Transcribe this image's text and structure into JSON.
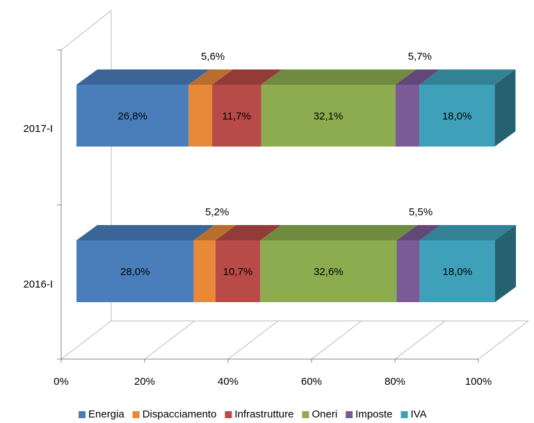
{
  "chart_data": {
    "type": "bar3d_stacked_horizontal",
    "categories": [
      "2017-I",
      "2016-I"
    ],
    "series": [
      {
        "name": "Energia",
        "color": "#4a7ebb",
        "values": [
          26.8,
          28.0
        ],
        "value_labels": [
          "26,8%",
          "28,0%"
        ]
      },
      {
        "name": "Dispacciamento",
        "color": "#e8893a",
        "values": [
          5.6,
          5.2
        ],
        "value_labels": [
          "5,6%",
          "5,2%"
        ]
      },
      {
        "name": "Infrastrutture",
        "color": "#b84a47",
        "values": [
          11.7,
          10.7
        ],
        "value_labels": [
          "11,7%",
          "10,7%"
        ]
      },
      {
        "name": "Oneri",
        "color": "#8cac4f",
        "values": [
          32.1,
          32.6
        ],
        "value_labels": [
          "32,1%",
          "32,6%"
        ]
      },
      {
        "name": "Imposte",
        "color": "#7a5a97",
        "values": [
          5.7,
          5.5
        ],
        "value_labels": [
          "5,7%",
          "5,5%"
        ]
      },
      {
        "name": "IVA",
        "color": "#3fa1b9",
        "values": [
          18.0,
          18.0
        ],
        "value_labels": [
          "18,0%",
          "18,0%"
        ]
      }
    ],
    "xlim": [
      0,
      100
    ],
    "xticks": [
      {
        "value": 0,
        "label": "0%"
      },
      {
        "value": 20,
        "label": "20%"
      },
      {
        "value": 40,
        "label": "40%"
      },
      {
        "value": 60,
        "label": "60%"
      },
      {
        "value": 80,
        "label": "80%"
      },
      {
        "value": 100,
        "label": "100%"
      }
    ],
    "legend": "bottom"
  }
}
